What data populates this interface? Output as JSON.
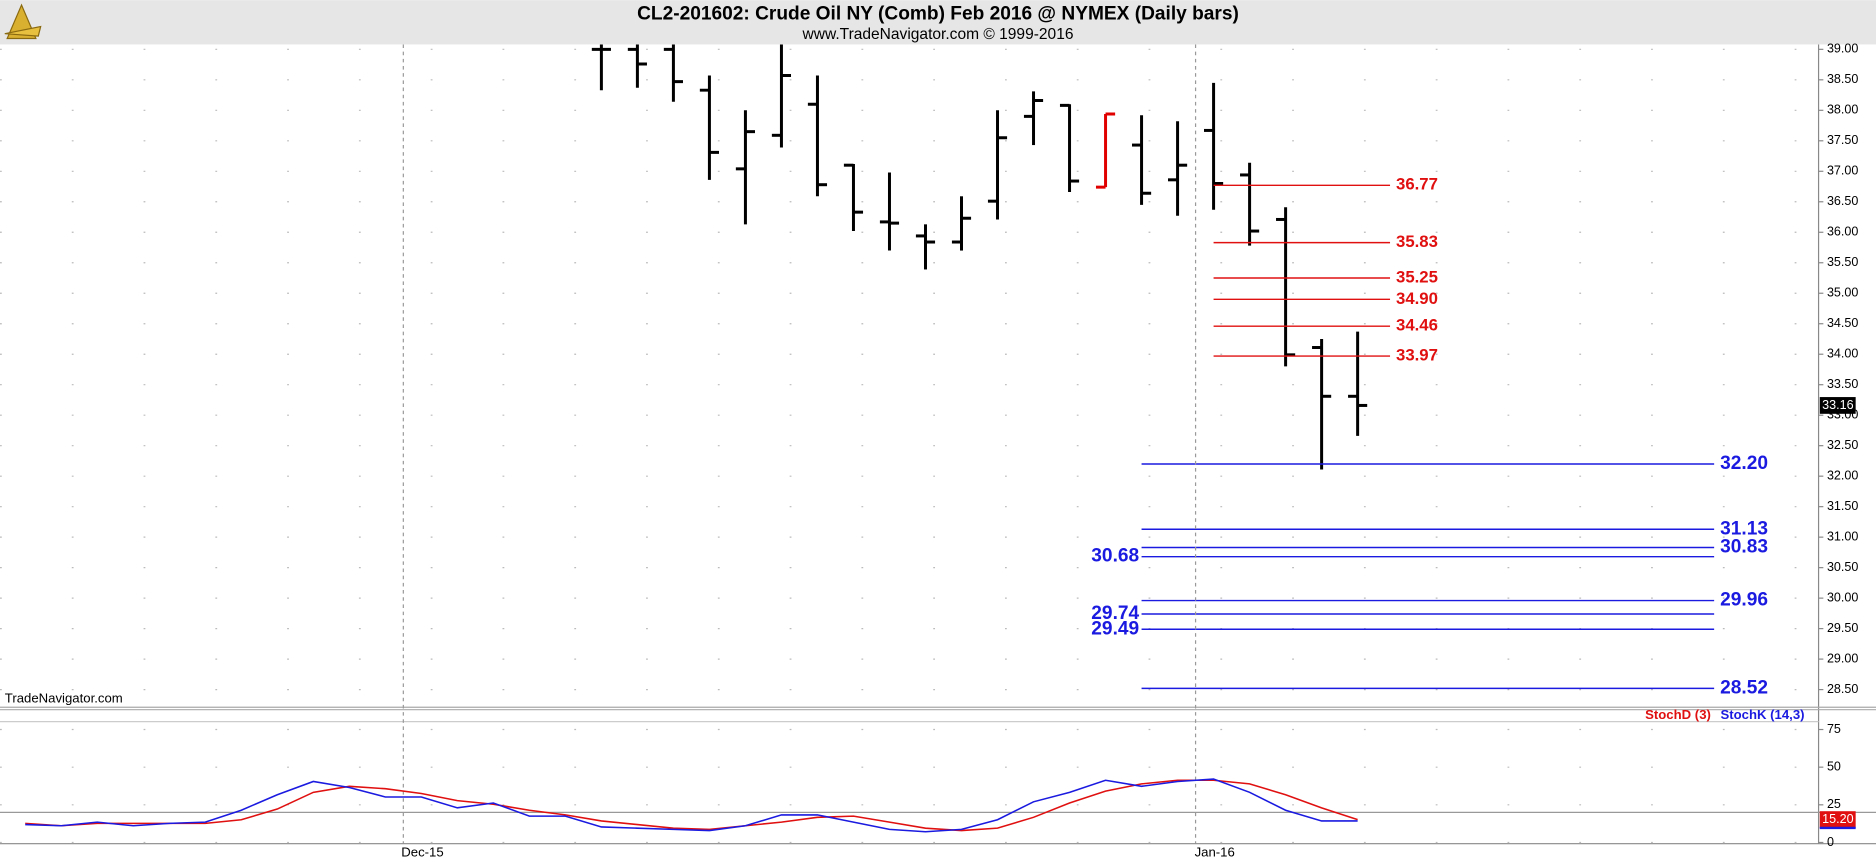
{
  "chart_data": [
    {
      "type": "ohlc",
      "title": "CL2-201602:  Crude Oil NY (Comb) Feb 2016 @ NYMEX  (Daily bars)",
      "subtitle": "www.TradeNavigator.com © 1999-2016",
      "watermark": "TradeNavigator.com",
      "categories": [
        null,
        null,
        null,
        null,
        null,
        null,
        null,
        null,
        null,
        null,
        null,
        null,
        null,
        null,
        null,
        null,
        null,
        null,
        null,
        null,
        null,
        null
      ],
      "open": [
        39.0,
        39.0,
        39.0,
        38.33,
        37.04,
        37.59,
        38.1,
        37.1,
        36.17,
        35.94,
        35.84,
        36.51,
        37.9,
        38.08,
        36.74,
        37.43,
        36.86,
        37.67,
        36.94,
        36.21,
        34.11,
        33.31
      ],
      "high": [
        39.2,
        39.15,
        39.15,
        38.57,
        38.0,
        39.08,
        38.57,
        37.12,
        36.98,
        36.13,
        36.59,
        38.0,
        38.31,
        38.1,
        37.94,
        37.92,
        37.82,
        38.45,
        37.14,
        36.41,
        34.25,
        34.37
      ],
      "low": [
        38.33,
        38.37,
        38.14,
        36.86,
        36.13,
        37.39,
        36.59,
        36.02,
        35.7,
        35.39,
        35.7,
        36.21,
        37.43,
        36.66,
        36.74,
        36.45,
        36.27,
        36.37,
        35.78,
        33.8,
        32.11,
        32.66
      ],
      "close": [
        39.0,
        38.76,
        38.47,
        37.31,
        37.65,
        38.57,
        36.78,
        36.33,
        36.15,
        35.84,
        36.23,
        37.55,
        38.16,
        36.84,
        37.94,
        36.64,
        37.1,
        36.8,
        36.02,
        33.99,
        33.31,
        33.16
      ],
      "bar_colors": [
        "#000000",
        "#000000",
        "#000000",
        "#000000",
        "#000000",
        "#000000",
        "#000000",
        "#000000",
        "#000000",
        "#000000",
        "#000000",
        "#000000",
        "#000000",
        "#000000",
        "#e00000",
        "#000000",
        "#000000",
        "#000000",
        "#000000",
        "#000000",
        "#000000",
        "#000000"
      ],
      "last_price": {
        "value": 33.16,
        "label": "33.16"
      },
      "xlim": [
        -16.7,
        33.8
      ],
      "ylim": [
        28.21,
        39.08
      ],
      "yticks": [
        {
          "value": 28.5,
          "label": "28.50"
        },
        {
          "value": 29,
          "label": "29.00"
        },
        {
          "value": 29.5,
          "label": "29.50"
        },
        {
          "value": 30,
          "label": "30.00"
        },
        {
          "value": 30.5,
          "label": "30.50"
        },
        {
          "value": 31,
          "label": "31.00"
        },
        {
          "value": 31.5,
          "label": "31.50"
        },
        {
          "value": 32,
          "label": "32.00"
        },
        {
          "value": 32.5,
          "label": "32.50"
        },
        {
          "value": 33,
          "label": "33.00"
        },
        {
          "value": 33.5,
          "label": "33.50"
        },
        {
          "value": 34,
          "label": "34.00"
        },
        {
          "value": 34.5,
          "label": "34.50"
        },
        {
          "value": 35,
          "label": "35.00"
        },
        {
          "value": 35.5,
          "label": "35.50"
        },
        {
          "value": 36,
          "label": "36.00"
        },
        {
          "value": 36.5,
          "label": "36.50"
        },
        {
          "value": 37,
          "label": "37.00"
        },
        {
          "value": 37.5,
          "label": "37.50"
        },
        {
          "value": 38,
          "label": "38.00"
        },
        {
          "value": 38.5,
          "label": "38.50"
        },
        {
          "value": 39,
          "label": "39.00"
        }
      ],
      "grid": true,
      "levels": [
        {
          "color": "#e01010",
          "values": [
            36.77,
            35.83,
            35.25,
            34.9,
            34.46,
            33.97
          ],
          "value_labels": [
            "36.77",
            "35.83",
            "35.25",
            "34.90",
            "34.46",
            "33.97"
          ],
          "label_side": [
            "right",
            "right",
            "right",
            "right",
            "right",
            "right"
          ]
        },
        {
          "color": "#1a1ae0",
          "values": [
            32.2,
            31.13,
            30.83,
            30.68,
            29.96,
            29.74,
            29.49,
            28.52
          ],
          "value_labels": [
            "32.20",
            "31.13",
            "30.83",
            "30.68",
            "29.96",
            "29.74",
            "29.49",
            "28.52"
          ],
          "label_side": [
            "right",
            "right",
            "right",
            "left",
            "right",
            "left",
            "left",
            "right"
          ]
        }
      ]
    },
    {
      "type": "line",
      "categories": [
        null,
        null,
        null,
        null,
        null,
        null,
        null,
        null,
        null,
        null,
        null,
        null,
        null,
        null,
        null,
        null,
        null,
        null,
        null,
        null,
        null,
        null,
        null,
        null,
        null,
        null,
        null,
        null,
        null,
        null,
        null,
        null,
        null,
        null,
        null,
        null,
        null,
        null
      ],
      "series": [
        {
          "name": "StochD (3)",
          "color": "#e01010",
          "values": [
            12.7,
            11.1,
            12.7,
            12.7,
            12.7,
            12.7,
            15.1,
            22.2,
            33.3,
            37.3,
            35.7,
            32.5,
            27.8,
            25.4,
            21.4,
            18.3,
            14.3,
            11.9,
            9.5,
            8.7,
            11.1,
            13.5,
            16.7,
            17.5,
            13.5,
            9.5,
            7.9,
            9.5,
            16.7,
            26.2,
            34.1,
            38.9,
            41.3,
            41.3,
            38.9,
            31.7,
            23.0,
            15.2
          ],
          "value_labels": [
            null,
            null,
            null,
            null,
            null,
            null,
            null,
            null,
            null,
            null,
            null,
            null,
            null,
            null,
            null,
            null,
            null,
            null,
            null,
            null,
            null,
            null,
            null,
            null,
            null,
            null,
            null,
            null,
            null,
            null,
            null,
            null,
            null,
            null,
            null,
            null,
            null,
            "15.20"
          ]
        },
        {
          "name": "StochK (14,3)",
          "color": "#1a1ae0",
          "values": [
            11.9,
            11.1,
            13.5,
            11.1,
            12.7,
            13.5,
            21.4,
            31.7,
            40.5,
            36.5,
            30.2,
            30.2,
            23.0,
            26.2,
            17.5,
            17.5,
            10.3,
            9.5,
            8.7,
            7.9,
            11.1,
            18.3,
            18.3,
            13.5,
            8.7,
            7.1,
            8.7,
            15.1,
            27.0,
            33.3,
            41.3,
            37.3,
            40.5,
            42.1,
            33.3,
            21.4,
            14.3,
            14.3
          ]
        }
      ],
      "xlim": [
        -0.7,
        49.8
      ],
      "xticks": [
        {
          "value": 10.5,
          "label": "Dec-15"
        },
        {
          "value": 32.5,
          "label": "Jan-16"
        }
      ],
      "ylim": [
        0,
        85
      ],
      "yticks": [
        0,
        25,
        50,
        75
      ],
      "hline": 20,
      "grid": true
    }
  ]
}
